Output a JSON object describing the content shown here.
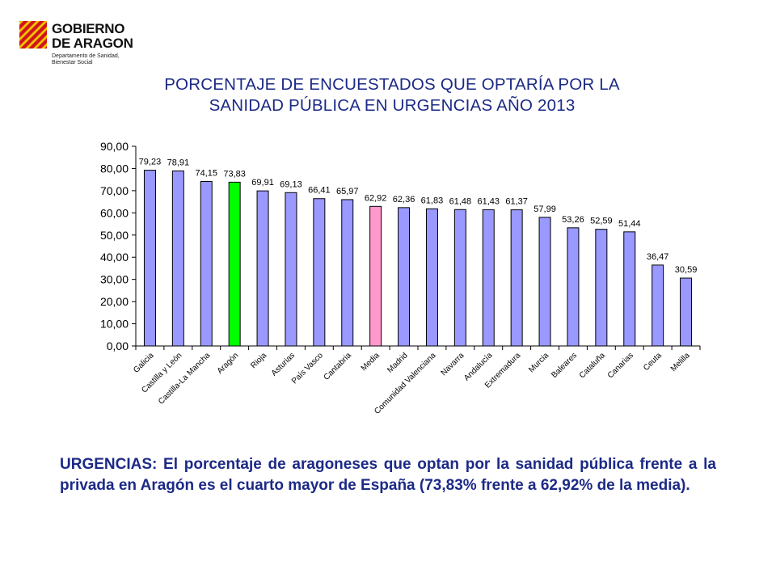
{
  "logo": {
    "line1": "GOBIERNO",
    "line2": "DE ARAGON",
    "dept1": "Departamento de Sanidad,",
    "dept2": "Bienestar Social"
  },
  "title": {
    "line1": "PORCENTAJE DE ENCUESTADOS QUE OPTARÍA POR LA",
    "line2": "SANIDAD PÚBLICA EN URGENCIAS AÑO 2013"
  },
  "chart_data": {
    "type": "bar",
    "title": "PORCENTAJE DE ENCUESTADOS QUE OPTARÍA POR LA SANIDAD PÚBLICA EN URGENCIAS AÑO 2013",
    "categories": [
      "Galicia",
      "Castilla y León",
      "Castilla-La Mancha",
      "Aragón",
      "Rioja",
      "Asturias",
      "País Vasco",
      "Cantabria",
      "Media",
      "Madrid",
      "Comunidad Valenciana",
      "Navarra",
      "Andalucía",
      "Extremadura",
      "Murcia",
      "Baleares",
      "Cataluña",
      "Canarias",
      "Ceuta",
      "Melilla"
    ],
    "values": [
      79.23,
      78.91,
      74.15,
      73.83,
      69.91,
      69.13,
      66.41,
      65.97,
      62.92,
      62.36,
      61.83,
      61.48,
      61.43,
      61.37,
      57.99,
      53.26,
      52.59,
      51.44,
      36.47,
      30.59
    ],
    "value_labels": [
      "79,23",
      "78,91",
      "74,15",
      "73,83",
      "69,91",
      "69,13",
      "66,41",
      "65,97",
      "62,92",
      "62,36",
      "61,83",
      "61,48",
      "61,43",
      "61,37",
      "57,99",
      "53,26",
      "52,59",
      "51,44",
      "36,47",
      "30,59"
    ],
    "ylim": [
      0,
      90
    ],
    "yticks": [
      "0,00",
      "10,00",
      "20,00",
      "30,00",
      "40,00",
      "50,00",
      "60,00",
      "70,00",
      "80,00",
      "90,00"
    ],
    "grid": false,
    "xlabel": "",
    "ylabel": "",
    "colors": {
      "default": "#9999ff",
      "highlight_region": "#00ff00",
      "highlight_mean": "#ff99cc",
      "outline": "#000000"
    },
    "highlight_region": "Aragón",
    "highlight_mean": "Media"
  },
  "caption": "URGENCIAS: El porcentaje de aragoneses que optan por la sanidad pública frente a la privada en Aragón es el cuarto mayor de España (73,83% frente a 62,92% de la media)."
}
